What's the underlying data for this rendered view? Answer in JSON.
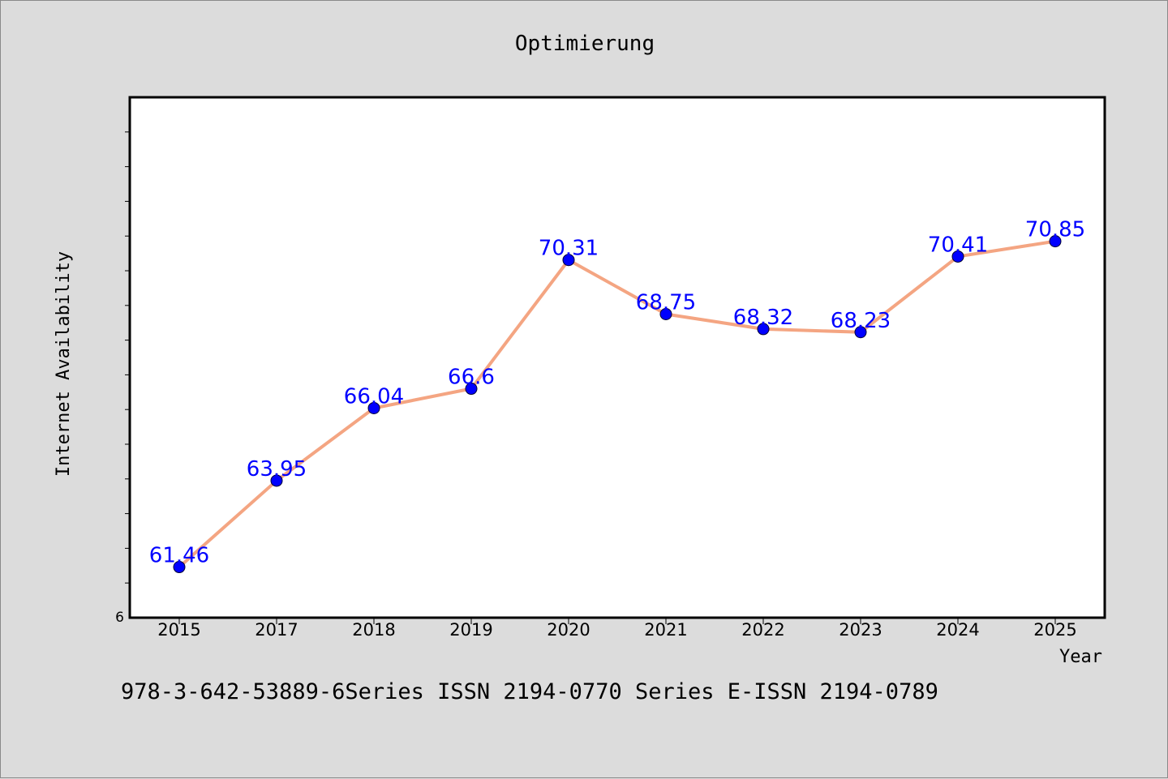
{
  "colors": {
    "background": "#dcdcdc",
    "plot_background": "#ffffff",
    "line": "#f4a582",
    "marker": "#0000ff",
    "data_label": "#0000ff"
  },
  "footer": "978-3-642-53889-6Series ISSN 2194-0770 Series E-ISSN 2194-0789",
  "chart_data": {
    "type": "line",
    "title": "Optimierung",
    "xlabel": "Year",
    "ylabel": "Internet Availability",
    "categories": [
      "2015",
      "2017",
      "2018",
      "2019",
      "2020",
      "2021",
      "2022",
      "2023",
      "2024",
      "2025"
    ],
    "series": [
      {
        "values": [
          61.46,
          63.95,
          66.04,
          66.6,
          70.31,
          68.75,
          68.32,
          68.23,
          70.41,
          70.85
        ],
        "data_labels": [
          "61.46",
          "63.95",
          "66.04",
          "66.6",
          "70.31",
          "68.75",
          "68.32",
          "68.23",
          "70.41",
          "70.85"
        ]
      }
    ],
    "y_axis_visible_label": "6",
    "ylim": [
      60,
      75
    ],
    "y_minor_tick_step": 1,
    "grid": false,
    "legend": "none"
  }
}
